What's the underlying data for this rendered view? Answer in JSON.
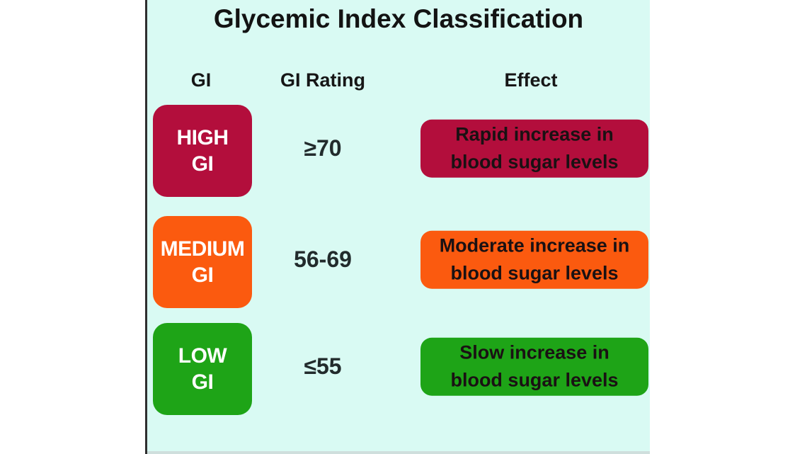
{
  "title": "Glycemic Index Classification",
  "columns": {
    "gi": "GI",
    "rating": "GI Rating",
    "effect": "Effect"
  },
  "rows": [
    {
      "name": "high",
      "gi_label": "HIGH\nGI",
      "rating": "≥70",
      "effect": "Rapid increase in\nblood sugar levels",
      "box_color": "#b30e3c"
    },
    {
      "name": "medium",
      "gi_label": "MEDIUM\nGI",
      "rating": "56-69",
      "effect": "Moderate increase in\nblood sugar levels",
      "box_color": "#fb5a0f"
    },
    {
      "name": "low",
      "gi_label": "LOW\nGI",
      "rating": "≤55",
      "effect": "Slow increase in\nblood sugar levels",
      "box_color": "#1ea417"
    }
  ],
  "colors": {
    "page_background": "#ffffff",
    "panel_background": "#d9faf3",
    "panel_border": "#2f2f2f",
    "high": "#b30e3c",
    "medium": "#fb5a0f",
    "low": "#1ea417",
    "badge_text": "#ffffff",
    "heading_text": "#131313"
  }
}
